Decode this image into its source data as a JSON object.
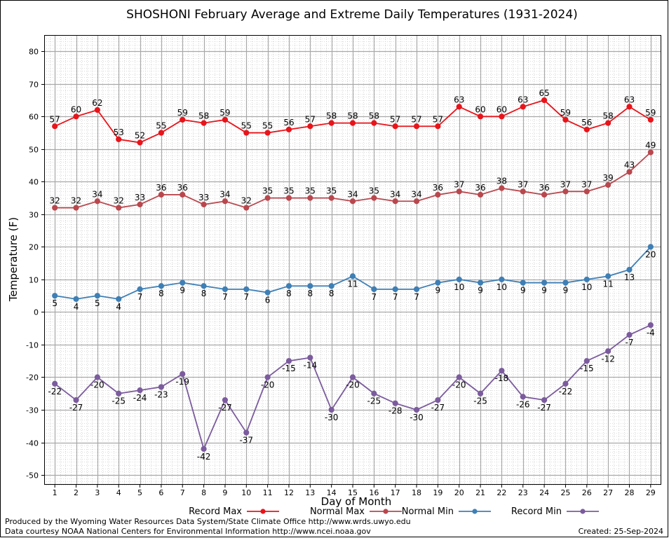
{
  "chart_data": {
    "type": "line",
    "title": "SHOSHONI February Average and Extreme Daily Temperatures (1931-2024)",
    "xlabel": "Day of Month",
    "ylabel": "Temperature (F)",
    "x": [
      "1",
      "2",
      "3",
      "4",
      "5",
      "6",
      "7",
      "8",
      "9",
      "10",
      "11",
      "12",
      "13",
      "14",
      "15",
      "16",
      "17",
      "18",
      "19",
      "20",
      "21",
      "22",
      "23",
      "24",
      "25",
      "26",
      "27",
      "28",
      "29"
    ],
    "xlim": [
      0.5,
      29.5
    ],
    "ylim": [
      -53,
      85
    ],
    "yticks": [
      80,
      70,
      60,
      50,
      40,
      30,
      20,
      10,
      0,
      -10,
      -20,
      -30,
      -40,
      -50
    ],
    "grid": true,
    "legend_position": "bottom",
    "series": [
      {
        "name": "Record Max",
        "color": "#e8141a",
        "label_position": "above",
        "values": [
          57,
          60,
          62,
          53,
          52,
          55,
          59,
          58,
          59,
          55,
          55,
          56,
          57,
          58,
          58,
          58,
          57,
          57,
          57,
          63,
          60,
          60,
          63,
          65,
          59,
          56,
          58,
          63,
          59
        ]
      },
      {
        "name": "Normal Max",
        "color": "#b8484e",
        "label_position": "above",
        "values": [
          32,
          32,
          34,
          32,
          33,
          36,
          36,
          33,
          34,
          32,
          35,
          35,
          35,
          35,
          34,
          35,
          34,
          34,
          36,
          37,
          36,
          38,
          37,
          36,
          37,
          37,
          39,
          43,
          49
        ]
      },
      {
        "name": "Normal Min",
        "color": "#3e7fb5",
        "label_position": "below",
        "values": [
          5,
          4,
          5,
          4,
          7,
          8,
          9,
          8,
          7,
          7,
          6,
          8,
          8,
          8,
          11,
          7,
          7,
          7,
          9,
          10,
          9,
          10,
          9,
          9,
          9,
          10,
          11,
          13,
          20
        ]
      },
      {
        "name": "Record Min",
        "color": "#7b5b9d",
        "label_position": "below",
        "values": [
          -22,
          -27,
          -20,
          -25,
          -24,
          -23,
          -19,
          -42,
          -27,
          -37,
          -20,
          -15,
          -14,
          -30,
          -20,
          -25,
          -28,
          -30,
          -27,
          -20,
          -25,
          -18,
          -26,
          -27,
          -22,
          -15,
          -12,
          -7,
          -4
        ]
      }
    ]
  },
  "footer": {
    "produced_by": "Produced by the Wyoming Water Resources Data System/State Climate Office http://www.wrds.uwyo.edu",
    "courtesy": "Data courtesy NOAA National Centers for Environmental Information http://www.ncei.noaa.gov",
    "created": "Created:  25-Sep-2024"
  }
}
